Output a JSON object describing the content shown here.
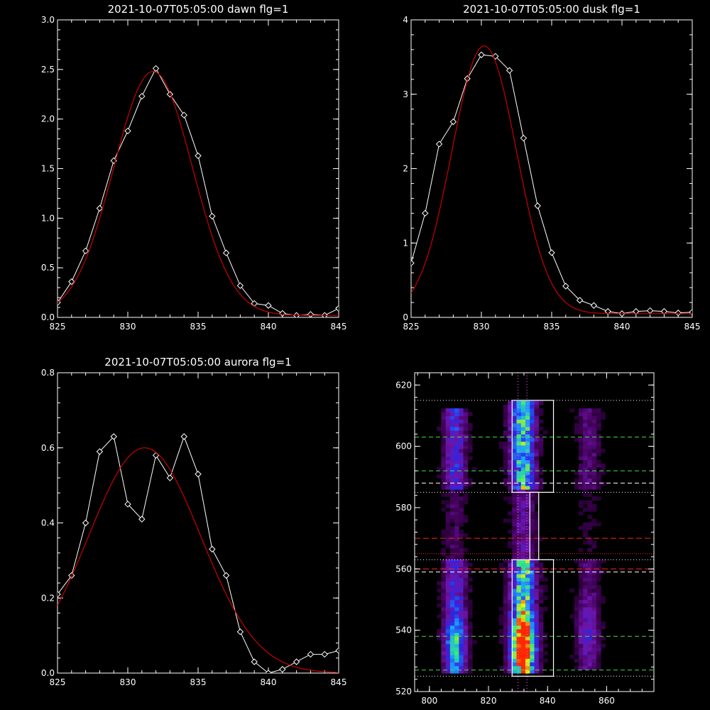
{
  "chart_data": [
    {
      "type": "line",
      "title": "2021-10-07T05:05:00 dawn flg=1",
      "xlim": [
        825,
        845
      ],
      "ylim": [
        0,
        3.0
      ],
      "xticks": [
        "825",
        "830",
        "835",
        "840",
        "845"
      ],
      "yticks": [
        "0.0",
        "0.5",
        "1.0",
        "1.5",
        "2.0",
        "2.5",
        "3.0"
      ],
      "ytick_values": [
        0,
        0.5,
        1.0,
        1.5,
        2.0,
        2.5,
        3.0
      ],
      "series": [
        {
          "color": "#ffffff",
          "markers": "diamond",
          "x": [
            825,
            826,
            827,
            828,
            829,
            830,
            831,
            832,
            833,
            834,
            835,
            836,
            837,
            838,
            839,
            840,
            841,
            842,
            843,
            844,
            845
          ],
          "y": [
            0.15,
            0.36,
            0.67,
            1.1,
            1.58,
            1.88,
            2.23,
            2.51,
            2.25,
            2.04,
            1.63,
            1.02,
            0.65,
            0.32,
            0.14,
            0.12,
            0.04,
            0.02,
            0.03,
            0.02,
            0.09
          ]
        },
        {
          "color": "#cc0000",
          "kind": "gaussian_fit",
          "amp": 2.46,
          "center": 831.8,
          "sigma": 2.8,
          "offset": 0.02
        }
      ]
    },
    {
      "type": "line",
      "title": "2021-10-07T05:05:00 dusk flg=1",
      "xlim": [
        825,
        845
      ],
      "ylim": [
        0,
        4
      ],
      "xticks": [
        "825",
        "830",
        "835",
        "840",
        "845"
      ],
      "yticks": [
        "0",
        "1",
        "2",
        "3",
        "4"
      ],
      "ytick_values": [
        0,
        1,
        2,
        3,
        4
      ],
      "series": [
        {
          "color": "#ffffff",
          "markers": "diamond",
          "x": [
            825,
            826,
            827,
            828,
            829,
            830,
            831,
            832,
            833,
            834,
            835,
            836,
            837,
            838,
            839,
            840,
            841,
            842,
            843,
            844,
            845
          ],
          "y": [
            0.73,
            1.4,
            2.33,
            2.63,
            3.21,
            3.53,
            3.51,
            3.32,
            2.41,
            1.5,
            0.87,
            0.42,
            0.23,
            0.16,
            0.08,
            0.05,
            0.08,
            0.09,
            0.08,
            0.06,
            0.07
          ]
        },
        {
          "color": "#cc0000",
          "kind": "gaussian_fit",
          "amp": 3.6,
          "center": 830.2,
          "sigma": 2.3,
          "offset": 0.05
        }
      ]
    },
    {
      "type": "line",
      "title": "2021-10-07T05:05:00 aurora flg=1",
      "xlim": [
        825,
        845
      ],
      "ylim": [
        0,
        0.8
      ],
      "xticks": [
        "825",
        "830",
        "835",
        "840",
        "845"
      ],
      "yticks": [
        "0.0",
        "0.2",
        "0.4",
        "0.6",
        "0.8"
      ],
      "ytick_values": [
        0,
        0.2,
        0.4,
        0.6,
        0.8
      ],
      "series": [
        {
          "color": "#ffffff",
          "markers": "diamond",
          "x": [
            825,
            826,
            827,
            828,
            829,
            830,
            831,
            832,
            833,
            834,
            835,
            836,
            837,
            838,
            839,
            840,
            841,
            842,
            843,
            844,
            845
          ],
          "y": [
            0.21,
            0.26,
            0.4,
            0.59,
            0.63,
            0.45,
            0.41,
            0.58,
            0.52,
            0.63,
            0.53,
            0.33,
            0.26,
            0.11,
            0.03,
            0.0,
            0.01,
            0.03,
            0.05,
            0.05,
            0.06
          ]
        },
        {
          "color": "#cc0000",
          "kind": "gaussian_fit",
          "amp": 0.6,
          "center": 831.2,
          "sigma": 4.0,
          "offset": 0.0
        }
      ]
    },
    {
      "type": "heatmap",
      "title": "",
      "xlim": [
        795,
        876
      ],
      "ylim": [
        520,
        624
      ],
      "xticks": [
        "800",
        "820",
        "840",
        "860"
      ],
      "xtick_values": [
        800,
        820,
        840,
        860
      ],
      "yticks": [
        "520",
        "540",
        "560",
        "580",
        "600",
        "620"
      ],
      "ytick_values": [
        520,
        540,
        560,
        580,
        600,
        620
      ],
      "emission_columns": [
        {
          "x_center": 808,
          "width": 8,
          "y_range": [
            525,
            612
          ],
          "peak": 0.55,
          "hotspot_y": 535
        },
        {
          "x_center": 831,
          "width": 9,
          "y_range": [
            525,
            614
          ],
          "peak": 1.0,
          "hotspot_y": 535
        },
        {
          "x_center": 853,
          "width": 8,
          "y_range": [
            527,
            612
          ],
          "peak": 0.28,
          "hotspot_y": 538
        }
      ],
      "boxes": [
        {
          "x": [
            828,
            842
          ],
          "y": [
            585,
            615
          ]
        },
        {
          "x": [
            828,
            842
          ],
          "y": [
            525,
            563
          ]
        },
        {
          "x": [
            834,
            837
          ],
          "y": [
            563,
            585
          ]
        }
      ],
      "hlines_white_dotted": [
        615,
        585,
        563,
        525
      ],
      "hlines_white_dashed": [
        588,
        559
      ],
      "hlines_green_dashed": [
        603,
        592,
        538,
        527
      ],
      "hlines_red_dashed": [
        570,
        560
      ],
      "hlines_red_dotted": [
        565
      ],
      "vlines_magenta_dotted": [
        830,
        833
      ],
      "colors": {
        "white": "#ffffff",
        "green": "#44dd44",
        "red": "#ff2222",
        "magenta": "#ff66ff"
      }
    }
  ]
}
